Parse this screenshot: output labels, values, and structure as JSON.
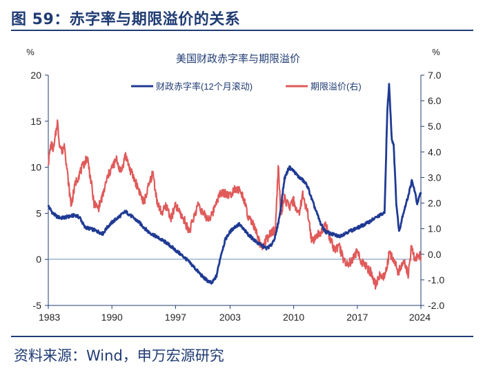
{
  "header": {
    "figure_title": "图 59：赤字率与期限溢价的关系"
  },
  "footer": {
    "source": "资料来源：Wind，申万宏源研究"
  },
  "colors": {
    "title": "#1f3b73",
    "deficit_line": "#1f3a93",
    "premium_line": "#e05a5a",
    "axis": "#1f3b73"
  },
  "chart_data": {
    "type": "line",
    "title": "美国财政赤字率与期限溢价",
    "y_left_unit": "%",
    "y_right_unit": "%",
    "ylim_left": [
      -5,
      20
    ],
    "ylim_right": [
      -2.0,
      7.0
    ],
    "y_left_ticks": [
      "20",
      "15",
      "10",
      "5",
      "0",
      "-5"
    ],
    "y_right_ticks": [
      "7.0",
      "6.0",
      "5.0",
      "4.0",
      "3.0",
      "2.0",
      "1.0",
      "0.0",
      "-1.0",
      "-2.0"
    ],
    "x_ticks": [
      "1983",
      "1990",
      "1997",
      "2003",
      "2010",
      "2017",
      "2024"
    ],
    "xlim": [
      1983,
      2024
    ],
    "legend_position": "top",
    "series": [
      {
        "name": "财政赤字率(12个月滚动)",
        "axis": "left",
        "x": [
          1983.0,
          1983.5,
          1984.0,
          1984.5,
          1985.0,
          1986.0,
          1986.5,
          1987.0,
          1988.0,
          1989.0,
          1989.5,
          1990.0,
          1991.0,
          1991.5,
          1992.0,
          1993.0,
          1994.0,
          1995.0,
          1996.0,
          1997.0,
          1998.0,
          1999.0,
          2000.0,
          2000.5,
          2001.0,
          2001.5,
          2002.0,
          2002.5,
          2003.0,
          2003.5,
          2004.0,
          2005.0,
          2006.0,
          2007.0,
          2007.5,
          2008.0,
          2008.5,
          2009.0,
          2009.5,
          2010.0,
          2010.5,
          2011.0,
          2011.5,
          2012.0,
          2013.0,
          2013.5,
          2014.0,
          2015.0,
          2016.0,
          2017.0,
          2018.0,
          2019.0,
          2019.5,
          2020.0,
          2020.3,
          2020.5,
          2020.8,
          2021.0,
          2021.3,
          2021.6,
          2022.0,
          2022.5,
          2023.0,
          2023.3,
          2023.6,
          2024.0
        ],
        "y": [
          5.8,
          5.0,
          4.6,
          4.5,
          4.6,
          4.8,
          4.5,
          3.5,
          3.2,
          2.8,
          3.5,
          4.0,
          4.8,
          5.2,
          4.8,
          4.0,
          3.0,
          2.4,
          1.8,
          1.0,
          0.2,
          -0.8,
          -1.9,
          -2.3,
          -2.6,
          -1.8,
          0.5,
          2.2,
          3.0,
          3.5,
          3.8,
          2.7,
          1.8,
          1.2,
          1.5,
          2.5,
          5.0,
          8.8,
          10.0,
          9.6,
          9.0,
          8.6,
          8.0,
          6.5,
          3.8,
          3.0,
          2.8,
          2.5,
          3.0,
          3.4,
          3.9,
          4.5,
          4.8,
          5.0,
          16.0,
          19.0,
          13.0,
          12.5,
          6.0,
          3.0,
          4.8,
          6.5,
          8.5,
          7.5,
          6.0,
          7.3
        ]
      },
      {
        "name": "期限溢价(右)",
        "axis": "right",
        "x": [
          1983.0,
          1983.3,
          1983.6,
          1984.0,
          1984.2,
          1984.5,
          1984.8,
          1985.0,
          1985.5,
          1986.0,
          1986.5,
          1987.0,
          1987.3,
          1987.8,
          1988.0,
          1988.5,
          1989.0,
          1989.5,
          1990.0,
          1990.5,
          1991.0,
          1991.5,
          1992.0,
          1992.5,
          1993.0,
          1993.5,
          1994.0,
          1994.5,
          1995.0,
          1995.5,
          1996.0,
          1996.5,
          1997.0,
          1997.5,
          1998.0,
          1998.5,
          1999.0,
          1999.5,
          2000.0,
          2000.5,
          2001.0,
          2001.5,
          2002.0,
          2002.5,
          2003.0,
          2003.5,
          2004.0,
          2004.5,
          2005.0,
          2005.5,
          2006.0,
          2006.5,
          2007.0,
          2007.5,
          2008.0,
          2008.3,
          2008.6,
          2009.0,
          2009.5,
          2010.0,
          2010.5,
          2011.0,
          2011.5,
          2012.0,
          2012.5,
          2013.0,
          2013.5,
          2014.0,
          2014.5,
          2015.0,
          2015.5,
          2016.0,
          2016.5,
          2017.0,
          2017.5,
          2018.0,
          2018.5,
          2019.0,
          2019.5,
          2020.0,
          2020.5,
          2021.0,
          2021.5,
          2022.0,
          2022.3,
          2022.6,
          2023.0,
          2023.3,
          2023.6,
          2024.0
        ],
        "y": [
          3.6,
          4.3,
          4.1,
          5.2,
          4.4,
          4.0,
          4.3,
          3.5,
          1.9,
          2.8,
          3.2,
          3.6,
          3.8,
          2.6,
          2.0,
          1.8,
          2.3,
          3.0,
          3.4,
          3.7,
          3.2,
          3.9,
          3.3,
          2.9,
          2.5,
          2.0,
          2.6,
          3.2,
          2.0,
          1.6,
          1.9,
          1.4,
          1.9,
          1.6,
          1.3,
          0.9,
          1.4,
          2.0,
          1.6,
          1.4,
          1.5,
          2.1,
          2.4,
          2.4,
          2.3,
          2.6,
          2.5,
          2.2,
          1.4,
          1.2,
          0.7,
          0.2,
          0.6,
          0.8,
          1.0,
          3.5,
          1.5,
          2.2,
          1.8,
          2.1,
          1.5,
          2.3,
          1.7,
          0.5,
          0.7,
          0.9,
          1.2,
          0.6,
          0.2,
          0.3,
          -0.2,
          -0.4,
          -0.2,
          0.1,
          -0.3,
          -0.5,
          -0.7,
          -1.2,
          -0.8,
          -0.9,
          0.0,
          -0.2,
          -0.7,
          -0.3,
          -0.4,
          -0.8,
          0.4,
          -0.3,
          0.0,
          -0.1
        ]
      }
    ]
  }
}
